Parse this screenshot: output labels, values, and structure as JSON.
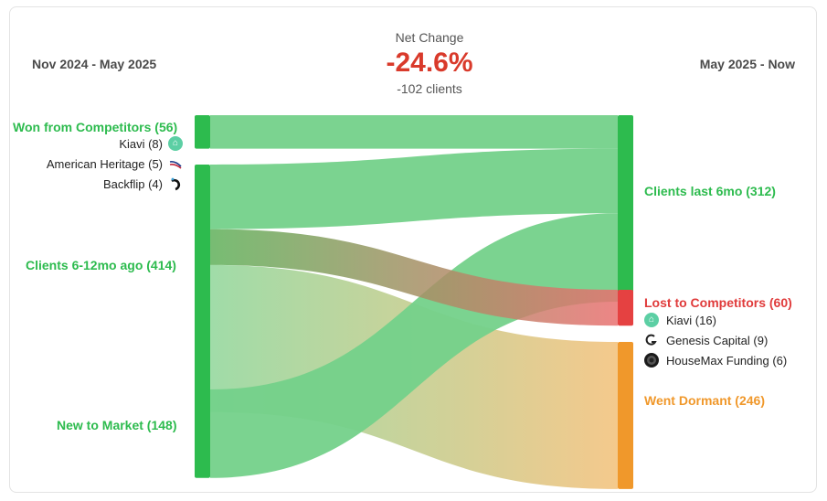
{
  "header": {
    "period_left": "Nov 2024 - May 2025",
    "period_right": "May 2025 - Now",
    "net_change_title": "Net Change",
    "net_change_value": "-24.6%",
    "net_change_sub": "-102 clients"
  },
  "colors": {
    "green": "#2dbb4e",
    "green_link": "#74d18a",
    "red": "#e54141",
    "orange": "#f0982b",
    "net_red": "#d93a2b"
  },
  "chart_data": {
    "type": "sankey",
    "nodes": [
      {
        "id": "won",
        "label": "Won from Competitors (56)",
        "value": 56,
        "side": "left",
        "color": "green"
      },
      {
        "id": "clients_prev",
        "label": "Clients 6-12mo ago (414)",
        "value": 414,
        "side": "left",
        "color": "green"
      },
      {
        "id": "new",
        "label": "New to Market (148)",
        "value": 148,
        "side": "left",
        "color": "green"
      },
      {
        "id": "clients_last",
        "label": "Clients last 6mo (312)",
        "value": 312,
        "side": "right",
        "color": "green"
      },
      {
        "id": "lost",
        "label": "Lost to Competitors (60)",
        "value": 60,
        "side": "right",
        "color": "red"
      },
      {
        "id": "dormant",
        "label": "Went Dormant (246)",
        "value": 246,
        "side": "right",
        "color": "orange"
      }
    ],
    "links": [
      {
        "source": "won",
        "target": "clients_last",
        "value": 56
      },
      {
        "source": "clients_prev",
        "target": "clients_last",
        "value": 108
      },
      {
        "source": "clients_prev",
        "target": "lost",
        "value": 60
      },
      {
        "source": "clients_prev",
        "target": "dormant",
        "value": 246
      },
      {
        "source": "new",
        "target": "clients_last",
        "value": 148
      }
    ]
  },
  "won_breakdown": [
    {
      "label": "Kiavi (8)",
      "icon": "kiavi-icon"
    },
    {
      "label": "American Heritage (5)",
      "icon": "american-heritage-icon"
    },
    {
      "label": "Backflip (4)",
      "icon": "backflip-icon"
    }
  ],
  "lost_breakdown": [
    {
      "label": "Kiavi (16)",
      "icon": "kiavi-icon"
    },
    {
      "label": "Genesis Capital (9)",
      "icon": "genesis-capital-icon"
    },
    {
      "label": "HouseMax Funding (6)",
      "icon": "housemax-icon"
    }
  ]
}
